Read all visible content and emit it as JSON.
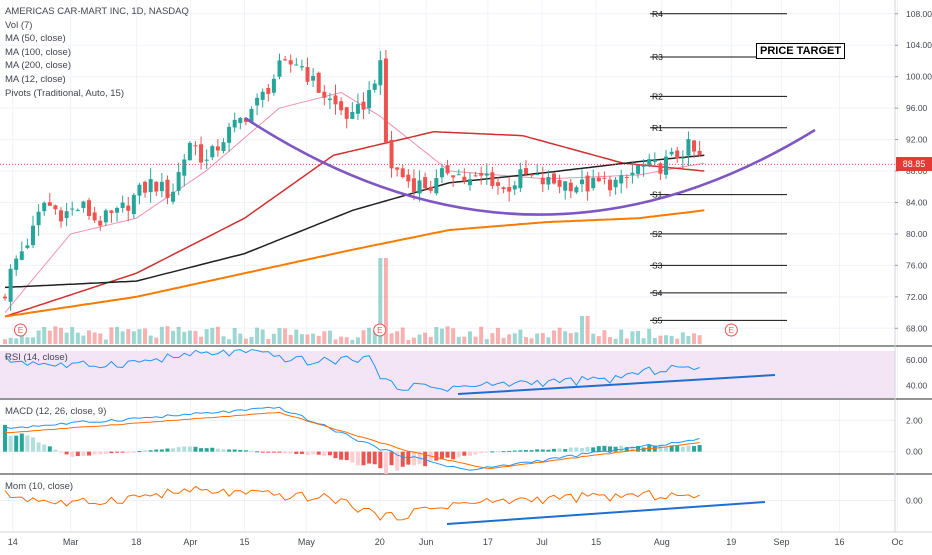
{
  "header": {
    "title": "AMERICAS CAR-MART INC, 1D, NASDAQ",
    "indicators": [
      "Vol (7)",
      "MA (50, close)",
      "MA (100, close)",
      "MA (200, close)",
      "MA (12, close)",
      "Pivots (Traditional, Auto, 15)"
    ]
  },
  "annotation": "PRICE TARGET",
  "last_price_label": "88.85",
  "earnings_marker": "E",
  "pane_labels": {
    "rsi": "RSI (14, close)",
    "macd": "MACD (12, 26, close, 9)",
    "mom": "Mom (10, close)"
  },
  "x_ticks": [
    "14",
    "Mar",
    "18",
    "Apr",
    "15",
    "May",
    "20",
    "Jun",
    "17",
    "Jul",
    "15",
    "Aug",
    "19",
    "Sep",
    "16",
    "Oc"
  ],
  "colors": {
    "up": "#26a69a",
    "down": "#ef5350",
    "ma12": "#f48fb1",
    "ma50": "#d32f2f",
    "ma100": "#212121",
    "ma200": "#f57c00",
    "curve": "#7e57c2",
    "trend": "#1e6fd0",
    "rsi_line": "#2196f3",
    "rsi_bg": "#f3e5f5",
    "macd_line": "#2196f3",
    "signal_line": "#ff6d00",
    "mom_line": "#ff6d00"
  },
  "chart_data": [
    {
      "type": "candlestick",
      "title": "AMERICAS CAR-MART INC, 1D, NASDAQ",
      "y_axis_ticks": [
        68,
        72,
        76,
        80,
        84,
        88,
        92,
        96,
        100,
        104,
        108
      ],
      "ylim": [
        66,
        109.5
      ],
      "last_price": 88.85,
      "close_series": [
        {
          "x": "Feb 12",
          "y": 72.5
        },
        {
          "x": "Feb 14",
          "y": 76
        },
        {
          "x": "Feb 19",
          "y": 80
        },
        {
          "x": "Feb 22",
          "y": 84
        },
        {
          "x": "Feb 27",
          "y": 82.5
        },
        {
          "x": "Mar 4",
          "y": 83.5
        },
        {
          "x": "Mar 8",
          "y": 81.5
        },
        {
          "x": "Mar 13",
          "y": 82.5
        },
        {
          "x": "Mar 18",
          "y": 85
        },
        {
          "x": "Mar 22",
          "y": 86.5
        },
        {
          "x": "Mar 27",
          "y": 85
        },
        {
          "x": "Apr 1",
          "y": 92
        },
        {
          "x": "Apr 5",
          "y": 89
        },
        {
          "x": "Apr 10",
          "y": 92.5
        },
        {
          "x": "Apr 15",
          "y": 95
        },
        {
          "x": "Apr 19",
          "y": 97
        },
        {
          "x": "Apr 24",
          "y": 101
        },
        {
          "x": "Apr 29",
          "y": 102
        },
        {
          "x": "May 3",
          "y": 99
        },
        {
          "x": "May 8",
          "y": 96.5
        },
        {
          "x": "May 13",
          "y": 94.5
        },
        {
          "x": "May 17",
          "y": 97.5
        },
        {
          "x": "May 20",
          "y": 102
        },
        {
          "x": "May 22",
          "y": 89
        },
        {
          "x": "May 28",
          "y": 86.5
        },
        {
          "x": "Jun 3",
          "y": 86
        },
        {
          "x": "Jun 7",
          "y": 88.5
        },
        {
          "x": "Jun 12",
          "y": 86.5
        },
        {
          "x": "Jun 17",
          "y": 87.5
        },
        {
          "x": "Jun 21",
          "y": 85.5
        },
        {
          "x": "Jun 26",
          "y": 87.5
        },
        {
          "x": "Jul 2",
          "y": 86.5
        },
        {
          "x": "Jul 8",
          "y": 86.5
        },
        {
          "x": "Jul 12",
          "y": 86
        },
        {
          "x": "Jul 17",
          "y": 86.5
        },
        {
          "x": "Jul 22",
          "y": 86.5
        },
        {
          "x": "Jul 26",
          "y": 88.5
        },
        {
          "x": "Jul 31",
          "y": 88.5
        },
        {
          "x": "Aug 5",
          "y": 90
        },
        {
          "x": "Aug 8",
          "y": 91
        },
        {
          "x": "Aug 12",
          "y": 88.85
        }
      ],
      "moving_averages": [
        {
          "name": "MA (12, close)",
          "points": [
            {
              "x": "Feb 12",
              "y": 70
            },
            {
              "x": "Mar 1",
              "y": 80
            },
            {
              "x": "Mar 18",
              "y": 82
            },
            {
              "x": "Apr 5",
              "y": 88
            },
            {
              "x": "Apr 24",
              "y": 96
            },
            {
              "x": "May 10",
              "y": 98
            },
            {
              "x": "May 20",
              "y": 95
            },
            {
              "x": "Jun 7",
              "y": 88
            },
            {
              "x": "Jul 2",
              "y": 87
            },
            {
              "x": "Jul 26",
              "y": 87.5
            },
            {
              "x": "Aug 12",
              "y": 89
            }
          ]
        },
        {
          "name": "MA (50, close)",
          "points": [
            {
              "x": "Feb 12",
              "y": 69.5
            },
            {
              "x": "Mar 18",
              "y": 75
            },
            {
              "x": "Apr 15",
              "y": 82
            },
            {
              "x": "May 8",
              "y": 90
            },
            {
              "x": "Jun 3",
              "y": 93
            },
            {
              "x": "Jun 26",
              "y": 92.5
            },
            {
              "x": "Jul 22",
              "y": 89
            },
            {
              "x": "Aug 12",
              "y": 88
            }
          ]
        },
        {
          "name": "MA (100, close)",
          "points": [
            {
              "x": "Feb 12",
              "y": 73.2
            },
            {
              "x": "Mar 18",
              "y": 74
            },
            {
              "x": "Apr 15",
              "y": 77.5
            },
            {
              "x": "May 13",
              "y": 83
            },
            {
              "x": "Jun 7",
              "y": 86.5
            },
            {
              "x": "Jul 2",
              "y": 87.8
            },
            {
              "x": "Jul 26",
              "y": 89.2
            },
            {
              "x": "Aug 12",
              "y": 90
            }
          ]
        },
        {
          "name": "MA (200, close)",
          "points": [
            {
              "x": "Feb 12",
              "y": 69.5
            },
            {
              "x": "Mar 18",
              "y": 72
            },
            {
              "x": "Apr 15",
              "y": 75
            },
            {
              "x": "May 13",
              "y": 78
            },
            {
              "x": "Jun 7",
              "y": 80.5
            },
            {
              "x": "Jul 2",
              "y": 81.5
            },
            {
              "x": "Jul 26",
              "y": 82
            },
            {
              "x": "Aug 12",
              "y": 83
            }
          ]
        }
      ],
      "pivot_levels": [
        {
          "label": "R4",
          "value": 108
        },
        {
          "label": "R3",
          "value": 102.5
        },
        {
          "label": "R2",
          "value": 97.5
        },
        {
          "label": "R1",
          "value": 93.5
        },
        {
          "label": "S1",
          "value": 85
        },
        {
          "label": "S2",
          "value": 80
        },
        {
          "label": "S3",
          "value": 76
        },
        {
          "label": "S4",
          "value": 72.5
        },
        {
          "label": "S5",
          "value": 69
        }
      ]
    },
    {
      "type": "line",
      "title": "RSI (14, close)",
      "y_axis_ticks": [
        40,
        60
      ],
      "ylim": [
        30,
        70
      ],
      "points": [
        {
          "x": "Feb 12",
          "y": 60
        },
        {
          "x": "Mar 1",
          "y": 55
        },
        {
          "x": "Mar 18",
          "y": 58
        },
        {
          "x": "Apr 1",
          "y": 64
        },
        {
          "x": "Apr 15",
          "y": 66
        },
        {
          "x": "May 3",
          "y": 58
        },
        {
          "x": "May 17",
          "y": 62
        },
        {
          "x": "May 22",
          "y": 40
        },
        {
          "x": "Jun 7",
          "y": 38
        },
        {
          "x": "Jun 26",
          "y": 42
        },
        {
          "x": "Jul 17",
          "y": 44
        },
        {
          "x": "Aug 5",
          "y": 55
        },
        {
          "x": "Aug 12",
          "y": 50
        }
      ]
    },
    {
      "type": "bar",
      "title": "MACD (12, 26, close, 9)",
      "y_axis_ticks": [
        0,
        2
      ],
      "ylim": [
        -1.3,
        3.3
      ],
      "histogram": [
        {
          "x": "Feb 12",
          "y": 1.5
        },
        {
          "x": "Mar 1",
          "y": -0.3
        },
        {
          "x": "Apr 1",
          "y": 0.3
        },
        {
          "x": "May 8",
          "y": -0.3
        },
        {
          "x": "May 22",
          "y": -1.2
        },
        {
          "x": "Jun 17",
          "y": 0
        },
        {
          "x": "Jul 17",
          "y": 0.3
        },
        {
          "x": "Aug 12",
          "y": 0.4
        }
      ],
      "macd_line": [
        {
          "x": "Feb 12",
          "y": 1.5
        },
        {
          "x": "Apr 24",
          "y": 2.8
        },
        {
          "x": "May 22",
          "y": 0
        },
        {
          "x": "Jun 12",
          "y": -1.2
        },
        {
          "x": "Jul 17",
          "y": 0
        },
        {
          "x": "Aug 12",
          "y": 0.8
        }
      ],
      "signal_line": [
        {
          "x": "Feb 12",
          "y": 1.2
        },
        {
          "x": "Apr 24",
          "y": 2.5
        },
        {
          "x": "May 28",
          "y": 0
        },
        {
          "x": "Jun 17",
          "y": -1.1
        },
        {
          "x": "Jul 22",
          "y": 0
        },
        {
          "x": "Aug 12",
          "y": 0.6
        }
      ]
    },
    {
      "type": "line",
      "title": "Mom (10, close)",
      "y_axis_ticks": [
        0
      ],
      "ylim": [
        -15,
        13
      ],
      "points": [
        {
          "x": "Feb 12",
          "y": 3
        },
        {
          "x": "Mar 1",
          "y": -2
        },
        {
          "x": "Apr 1",
          "y": 5
        },
        {
          "x": "May 8",
          "y": 1
        },
        {
          "x": "May 22",
          "y": -9
        },
        {
          "x": "Jun 7",
          "y": -2
        },
        {
          "x": "Jul 2",
          "y": 1
        },
        {
          "x": "Aug 5",
          "y": 3
        },
        {
          "x": "Aug 12",
          "y": 0
        }
      ]
    }
  ]
}
